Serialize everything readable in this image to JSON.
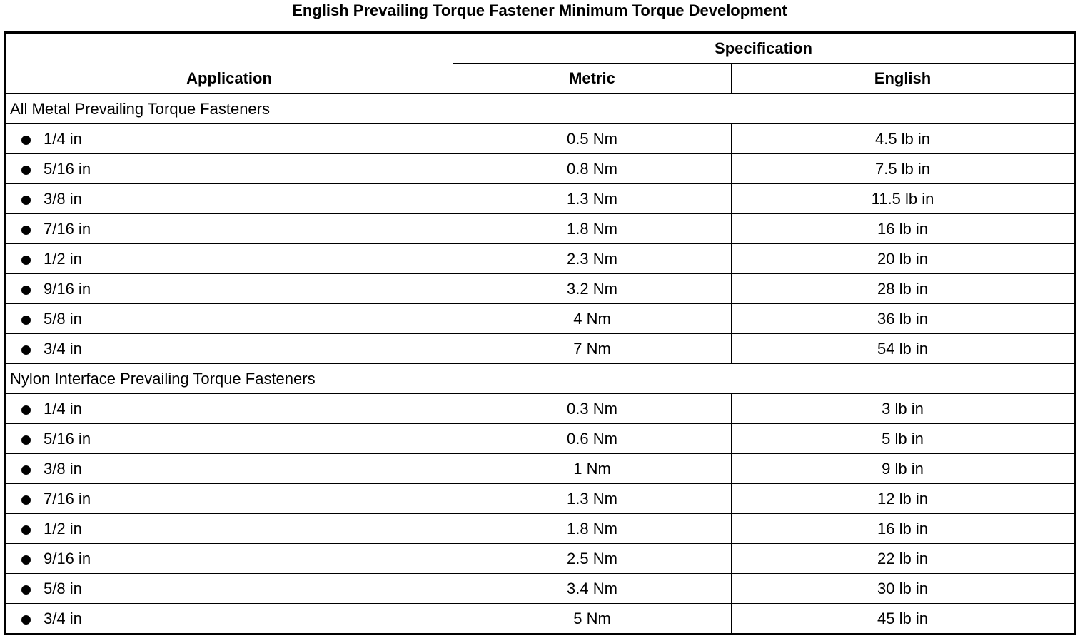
{
  "title": "English Prevailing Torque Fastener Minimum Torque Development",
  "headers": {
    "application": "Application",
    "specification": "Specification",
    "metric": "Metric",
    "english": "English"
  },
  "groups": [
    {
      "label": "All Metal Prevailing Torque Fasteners",
      "rows": [
        {
          "application": "1/4 in",
          "metric": "0.5 Nm",
          "english": "4.5 lb in"
        },
        {
          "application": "5/16 in",
          "metric": "0.8 Nm",
          "english": "7.5 lb in"
        },
        {
          "application": "3/8 in",
          "metric": "1.3 Nm",
          "english": "11.5 lb in"
        },
        {
          "application": "7/16 in",
          "metric": "1.8 Nm",
          "english": "16 lb in"
        },
        {
          "application": "1/2 in",
          "metric": "2.3 Nm",
          "english": "20 lb in"
        },
        {
          "application": "9/16 in",
          "metric": "3.2 Nm",
          "english": "28 lb in"
        },
        {
          "application": "5/8 in",
          "metric": "4 Nm",
          "english": "36 lb in"
        },
        {
          "application": "3/4 in",
          "metric": "7 Nm",
          "english": "54 lb in"
        }
      ]
    },
    {
      "label": "Nylon Interface Prevailing Torque Fasteners",
      "rows": [
        {
          "application": "1/4 in",
          "metric": "0.3 Nm",
          "english": "3 lb in"
        },
        {
          "application": "5/16 in",
          "metric": "0.6 Nm",
          "english": "5 lb in"
        },
        {
          "application": "3/8 in",
          "metric": "1 Nm",
          "english": "9 lb in"
        },
        {
          "application": "7/16 in",
          "metric": "1.3 Nm",
          "english": "12 lb in"
        },
        {
          "application": "1/2 in",
          "metric": "1.8 Nm",
          "english": "16 lb in"
        },
        {
          "application": "9/16 in",
          "metric": "2.5 Nm",
          "english": "22 lb in"
        },
        {
          "application": "5/8 in",
          "metric": "3.4 Nm",
          "english": "30 lb in"
        },
        {
          "application": "3/4 in",
          "metric": "5 Nm",
          "english": "45 lb in"
        }
      ]
    }
  ]
}
